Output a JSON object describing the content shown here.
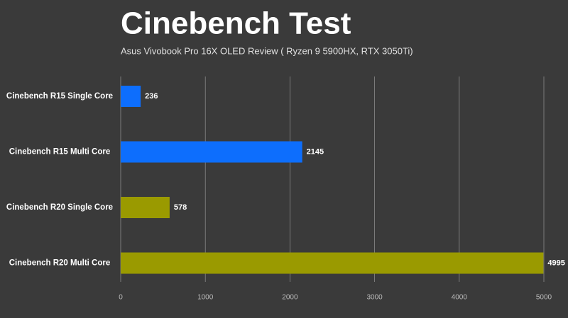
{
  "chart_data": {
    "type": "hbar",
    "title": "Cinebench Test",
    "subtitle": "Asus Vivobook Pro 16X OLED Review ( Ryzen 9 5900HX, RTX 3050Ti)",
    "categories": [
      "Cinebench R15 Single Core",
      "Cinebench R15 Multi Core",
      "Cinebench R20 Single Core",
      "Cinebench R20 Multi Core"
    ],
    "values": [
      236,
      2145,
      578,
      4995
    ],
    "colors": [
      "#0d6efd",
      "#0d6efd",
      "#9a9a00",
      "#9a9a00"
    ],
    "xlim": [
      0,
      5000
    ],
    "xticks": [
      0,
      1000,
      2000,
      3000,
      4000,
      5000
    ],
    "grid": true
  }
}
